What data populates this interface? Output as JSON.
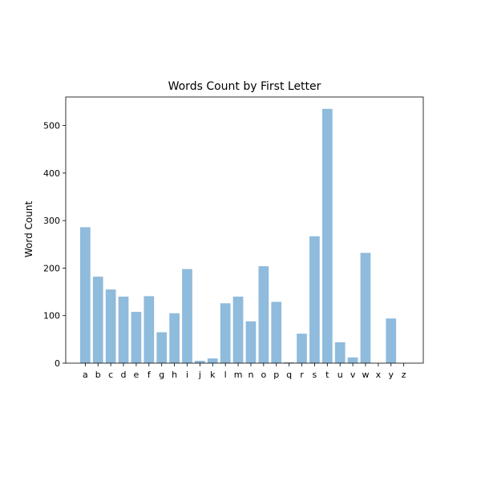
{
  "chart_data": {
    "type": "bar",
    "title": "Words Count by First Letter",
    "xlabel": "",
    "ylabel": "Word Count",
    "categories": [
      "a",
      "b",
      "c",
      "d",
      "e",
      "f",
      "g",
      "h",
      "i",
      "j",
      "k",
      "l",
      "m",
      "n",
      "o",
      "p",
      "q",
      "r",
      "s",
      "t",
      "u",
      "v",
      "w",
      "x",
      "y",
      "z"
    ],
    "values": [
      286,
      182,
      155,
      140,
      108,
      141,
      65,
      105,
      198,
      5,
      10,
      126,
      140,
      88,
      204,
      129,
      2,
      62,
      267,
      535,
      44,
      12,
      232,
      0,
      94,
      0
    ],
    "ylim": [
      0,
      560
    ],
    "yticks": [
      0,
      100,
      200,
      300,
      400,
      500
    ],
    "grid": false,
    "bar_color": "#8fbbdc"
  }
}
